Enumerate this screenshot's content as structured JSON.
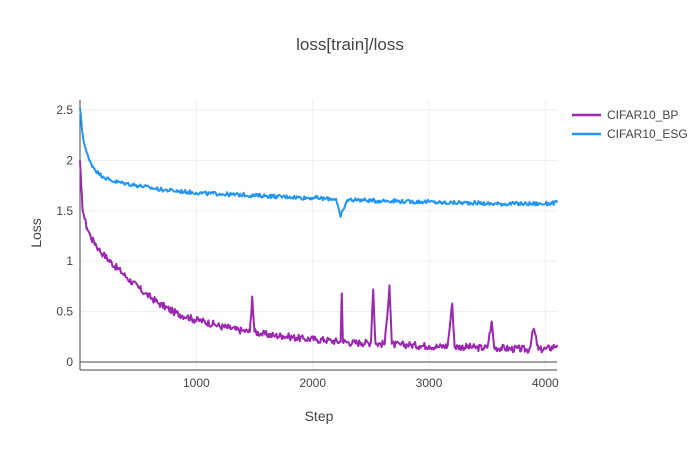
{
  "chart_data": {
    "type": "line",
    "title": "loss[train]/loss",
    "xlabel": "Step",
    "ylabel": "Loss",
    "xlim": [
      0,
      4100
    ],
    "ylim": [
      -0.08,
      2.6
    ],
    "xticks": [
      1000,
      2000,
      3000,
      4000
    ],
    "xtick_labels": [
      "1000",
      "2000",
      "3000",
      "4000"
    ],
    "yticks": [
      0,
      0.5,
      1,
      1.5,
      2,
      2.5
    ],
    "ytick_labels": [
      "0",
      "0.5",
      "1",
      "1.5",
      "2",
      "2.5"
    ],
    "grid": true,
    "legend_position": "top-right, outside plot",
    "series": [
      {
        "name": "CIFAR10_BP",
        "color": "#9c27b0",
        "x": [
          0,
          10,
          20,
          40,
          60,
          80,
          100,
          130,
          160,
          200,
          250,
          300,
          350,
          400,
          450,
          500,
          560,
          620,
          680,
          740,
          800,
          860,
          920,
          980,
          1040,
          1100,
          1160,
          1220,
          1280,
          1340,
          1400,
          1460,
          1480,
          1500,
          1560,
          1620,
          1680,
          1740,
          1800,
          1860,
          1920,
          1980,
          2040,
          2100,
          2160,
          2240,
          2250,
          2260,
          2340,
          2420,
          2500,
          2520,
          2540,
          2620,
          2660,
          2680,
          2700,
          2760,
          2840,
          2920,
          3000,
          3080,
          3160,
          3200,
          3220,
          3260,
          3340,
          3420,
          3500,
          3540,
          3560,
          3620,
          3700,
          3780,
          3860,
          3900,
          3940,
          4000,
          4050,
          4100
        ],
        "y": [
          2.0,
          1.75,
          1.55,
          1.42,
          1.33,
          1.28,
          1.22,
          1.18,
          1.12,
          1.07,
          1.01,
          0.95,
          0.9,
          0.84,
          0.79,
          0.74,
          0.68,
          0.63,
          0.58,
          0.54,
          0.5,
          0.47,
          0.45,
          0.42,
          0.41,
          0.39,
          0.37,
          0.35,
          0.34,
          0.32,
          0.31,
          0.3,
          0.65,
          0.3,
          0.28,
          0.27,
          0.26,
          0.26,
          0.25,
          0.24,
          0.23,
          0.23,
          0.22,
          0.22,
          0.21,
          0.2,
          0.68,
          0.2,
          0.19,
          0.19,
          0.19,
          0.72,
          0.18,
          0.18,
          0.76,
          0.18,
          0.17,
          0.17,
          0.17,
          0.16,
          0.16,
          0.15,
          0.16,
          0.58,
          0.15,
          0.15,
          0.15,
          0.14,
          0.14,
          0.4,
          0.14,
          0.14,
          0.13,
          0.13,
          0.12,
          0.33,
          0.12,
          0.13,
          0.14,
          0.17
        ]
      },
      {
        "name": "CIFAR10_ESG",
        "color": "#2196f3",
        "x": [
          0,
          10,
          20,
          40,
          60,
          80,
          100,
          130,
          160,
          200,
          250,
          300,
          350,
          400,
          500,
          600,
          700,
          800,
          900,
          1000,
          1100,
          1200,
          1300,
          1400,
          1500,
          1600,
          1700,
          1800,
          1900,
          2000,
          2100,
          2200,
          2240,
          2300,
          2400,
          2500,
          2600,
          2700,
          2800,
          2900,
          3000,
          3100,
          3200,
          3300,
          3400,
          3500,
          3600,
          3700,
          3800,
          3900,
          4000,
          4100
        ],
        "y": [
          2.52,
          2.4,
          2.28,
          2.15,
          2.07,
          2.0,
          1.96,
          1.91,
          1.87,
          1.84,
          1.81,
          1.79,
          1.78,
          1.77,
          1.75,
          1.73,
          1.71,
          1.7,
          1.69,
          1.68,
          1.67,
          1.67,
          1.66,
          1.66,
          1.65,
          1.65,
          1.64,
          1.64,
          1.63,
          1.63,
          1.62,
          1.62,
          1.44,
          1.61,
          1.61,
          1.6,
          1.6,
          1.6,
          1.59,
          1.59,
          1.59,
          1.58,
          1.58,
          1.58,
          1.58,
          1.57,
          1.57,
          1.57,
          1.57,
          1.57,
          1.57,
          1.58
        ]
      }
    ]
  }
}
